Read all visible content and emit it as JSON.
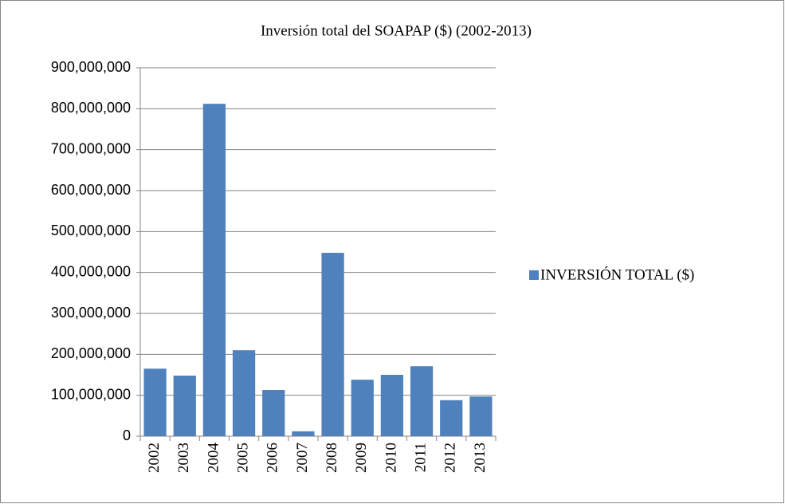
{
  "chart_data": {
    "type": "bar",
    "title": "Inversión total del SOAPAP ($) (2002-2013)",
    "categories": [
      "2002",
      "2003",
      "2004",
      "2005",
      "2006",
      "2007",
      "2008",
      "2009",
      "2010",
      "2011",
      "2012",
      "2013"
    ],
    "series": [
      {
        "name": "INVERSIÓN TOTAL ($)",
        "color": "#4f81bd",
        "values": [
          165000000,
          148000000,
          812000000,
          210000000,
          113000000,
          12000000,
          448000000,
          138000000,
          150000000,
          171000000,
          88000000,
          97000000
        ]
      }
    ],
    "ylim": [
      0,
      900000000
    ],
    "yticks": [
      0,
      {
        "value": 100000000,
        "label": "100,000,000"
      },
      {
        "value": 200000000,
        "label": "200,000,000"
      },
      {
        "value": 300000000,
        "label": "300,000,000"
      },
      {
        "value": 400000000,
        "label": "400,000,000"
      },
      {
        "value": 500000000,
        "label": "500,000,000"
      },
      {
        "value": 600000000,
        "label": "600,000,000"
      },
      {
        "value": 700000000,
        "label": "700,000,000"
      },
      {
        "value": 800000000,
        "label": "800,000,000"
      },
      {
        "value": 900000000,
        "label": "900,000,000"
      }
    ],
    "grid": true,
    "legend": "right"
  }
}
